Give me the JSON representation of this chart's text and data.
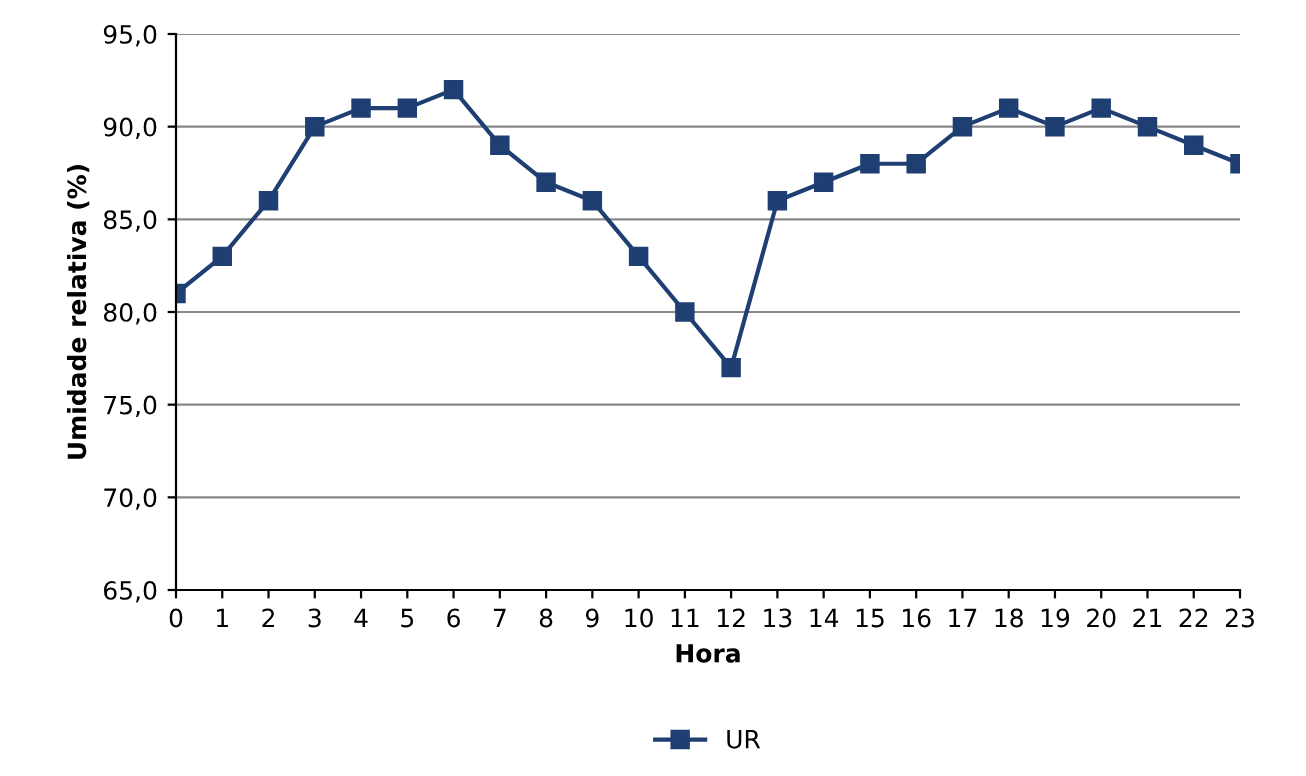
{
  "chart_data": {
    "type": "line",
    "xlabel": "Hora",
    "ylabel": "Umidade relativa (%)",
    "x": [
      0,
      1,
      2,
      3,
      4,
      5,
      6,
      7,
      8,
      9,
      10,
      11,
      12,
      13,
      14,
      15,
      16,
      17,
      18,
      19,
      20,
      21,
      22,
      23
    ],
    "series": [
      {
        "name": "UR",
        "color": "#1f3f73",
        "values": [
          81,
          83,
          86,
          90,
          91,
          91,
          92,
          89,
          87,
          86,
          83,
          80,
          77,
          86,
          87,
          88,
          88,
          90,
          91,
          90,
          91,
          90,
          89,
          88
        ]
      }
    ],
    "xlim": [
      0,
      23
    ],
    "xticks": [
      0,
      1,
      2,
      3,
      4,
      5,
      6,
      7,
      8,
      9,
      10,
      11,
      12,
      13,
      14,
      15,
      16,
      17,
      18,
      19,
      20,
      21,
      22,
      23
    ],
    "ylim": [
      65,
      95
    ],
    "yticks": [
      {
        "value": 65,
        "label": "65,0"
      },
      {
        "value": 70,
        "label": "70,0"
      },
      {
        "value": 75,
        "label": "75,0"
      },
      {
        "value": 80,
        "label": "80,0"
      },
      {
        "value": 85,
        "label": "85,0"
      },
      {
        "value": 90,
        "label": "90,0"
      },
      {
        "value": 95,
        "label": "95,0"
      }
    ],
    "grid": "y",
    "legend": "bottom",
    "marker": "square",
    "line_style": "solid"
  }
}
